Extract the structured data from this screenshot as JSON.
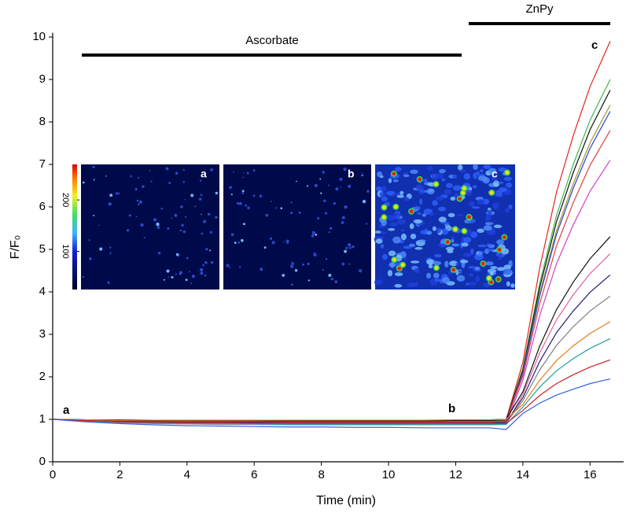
{
  "chart_data": {
    "type": "line",
    "x_label": "Time (min)",
    "y_label": "F/F₀",
    "x": [
      0,
      1,
      2,
      3,
      4,
      5,
      6,
      7,
      8,
      9,
      10,
      11,
      12,
      13,
      13.5,
      14,
      14.5,
      15,
      15.5,
      16,
      16.6
    ],
    "series": [
      {
        "color": "#e8231f",
        "values": [
          1,
          0.98,
          0.96,
          0.95,
          0.94,
          0.94,
          0.94,
          0.93,
          0.93,
          0.93,
          0.93,
          0.93,
          0.93,
          0.94,
          0.98,
          2.34,
          4.56,
          6.34,
          7.68,
          8.83,
          9.9
        ]
      },
      {
        "color": "#3cb84a",
        "values": [
          1,
          0.98,
          0.97,
          0.96,
          0.95,
          0.95,
          0.95,
          0.95,
          0.94,
          0.94,
          0.94,
          0.94,
          0.95,
          0.95,
          0.97,
          2.2,
          4.2,
          5.8,
          7.0,
          8.04,
          9.0
        ]
      },
      {
        "color": "#111111",
        "values": [
          1,
          0.99,
          0.98,
          0.97,
          0.97,
          0.97,
          0.97,
          0.96,
          0.96,
          0.96,
          0.96,
          0.96,
          0.97,
          0.97,
          0.99,
          2.16,
          4.1,
          5.65,
          6.81,
          7.82,
          8.75
        ]
      },
      {
        "color": "#9a9a2a",
        "values": [
          1,
          0.97,
          0.95,
          0.94,
          0.93,
          0.93,
          0.92,
          0.92,
          0.92,
          0.92,
          0.92,
          0.92,
          0.92,
          0.92,
          0.95,
          2.11,
          3.96,
          5.44,
          6.55,
          7.51,
          8.4
        ]
      },
      {
        "color": "#2a3fd6",
        "values": [
          1,
          0.97,
          0.94,
          0.93,
          0.92,
          0.91,
          0.91,
          0.91,
          0.9,
          0.9,
          0.9,
          0.9,
          0.9,
          0.9,
          0.93,
          2.09,
          3.9,
          5.35,
          6.44,
          7.38,
          8.25
        ]
      },
      {
        "color": "#e04040",
        "values": [
          1,
          0.98,
          0.96,
          0.95,
          0.95,
          0.94,
          0.94,
          0.94,
          0.94,
          0.94,
          0.94,
          0.94,
          0.94,
          0.94,
          0.96,
          2.02,
          3.72,
          5.08,
          6.1,
          6.98,
          7.8
        ]
      },
      {
        "color": "#d040c8",
        "values": [
          1,
          0.96,
          0.93,
          0.91,
          0.9,
          0.89,
          0.89,
          0.89,
          0.88,
          0.88,
          0.88,
          0.88,
          0.88,
          0.88,
          0.9,
          1.92,
          3.44,
          4.66,
          5.58,
          6.37,
          7.1
        ]
      },
      {
        "color": "#111111",
        "values": [
          1,
          0.99,
          0.99,
          0.98,
          0.98,
          0.98,
          0.98,
          0.98,
          0.98,
          0.98,
          0.98,
          0.98,
          0.98,
          0.99,
          1.0,
          1.65,
          2.72,
          3.58,
          4.23,
          4.78,
          5.3
        ]
      },
      {
        "color": "#e060a0",
        "values": [
          1,
          0.96,
          0.92,
          0.9,
          0.89,
          0.88,
          0.88,
          0.87,
          0.87,
          0.87,
          0.87,
          0.87,
          0.87,
          0.87,
          0.88,
          1.59,
          2.56,
          3.34,
          3.93,
          4.43,
          4.9
        ]
      },
      {
        "color": "#20207a",
        "values": [
          1,
          0.97,
          0.95,
          0.94,
          0.93,
          0.93,
          0.93,
          0.92,
          0.92,
          0.92,
          0.92,
          0.92,
          0.92,
          0.92,
          0.93,
          1.51,
          2.36,
          3.04,
          3.55,
          3.99,
          4.4
        ]
      },
      {
        "color": "#808080",
        "values": [
          1,
          0.97,
          0.94,
          0.92,
          0.91,
          0.91,
          0.9,
          0.9,
          0.9,
          0.9,
          0.9,
          0.9,
          0.9,
          0.9,
          0.91,
          1.44,
          2.16,
          2.74,
          3.18,
          3.55,
          3.9
        ]
      },
      {
        "color": "#e08020",
        "values": [
          1,
          0.99,
          0.98,
          0.98,
          0.98,
          0.98,
          0.98,
          0.98,
          0.98,
          0.98,
          0.98,
          0.98,
          0.99,
          0.99,
          1.0,
          1.35,
          1.92,
          2.38,
          2.73,
          3.02,
          3.3
        ]
      },
      {
        "color": "#20a0a0",
        "values": [
          1,
          0.96,
          0.93,
          0.91,
          0.9,
          0.89,
          0.89,
          0.88,
          0.88,
          0.88,
          0.88,
          0.88,
          0.88,
          0.88,
          0.88,
          1.29,
          1.76,
          2.14,
          2.43,
          2.67,
          2.9
        ]
      },
      {
        "color": "#d02020",
        "values": [
          1,
          0.97,
          0.94,
          0.93,
          0.92,
          0.92,
          0.91,
          0.91,
          0.91,
          0.91,
          0.91,
          0.91,
          0.91,
          0.91,
          0.9,
          1.21,
          1.56,
          1.84,
          2.05,
          2.23,
          2.4
        ]
      },
      {
        "color": "#3060e0",
        "values": [
          1,
          0.94,
          0.9,
          0.87,
          0.85,
          0.84,
          0.83,
          0.82,
          0.82,
          0.81,
          0.81,
          0.8,
          0.8,
          0.8,
          0.76,
          1.14,
          1.38,
          1.57,
          1.71,
          1.84,
          1.95
        ]
      }
    ],
    "xlim": [
      0,
      17
    ],
    "ylim": [
      0,
      10.1
    ],
    "xticks": [
      0,
      2,
      4,
      6,
      8,
      10,
      12,
      14,
      16
    ],
    "yticks": [
      0,
      1,
      2,
      3,
      4,
      5,
      6,
      7,
      8,
      9,
      10
    ],
    "annotations": {
      "ascorbate": "Ascorbate",
      "znpy": "ZnPy",
      "a": "a",
      "b": "b",
      "c": "c"
    },
    "inset": {
      "panels": [
        "a",
        "b",
        "c"
      ],
      "colorbar_lim": [
        26,
        269
      ],
      "colorbar_ticks": [
        100,
        200
      ]
    }
  }
}
